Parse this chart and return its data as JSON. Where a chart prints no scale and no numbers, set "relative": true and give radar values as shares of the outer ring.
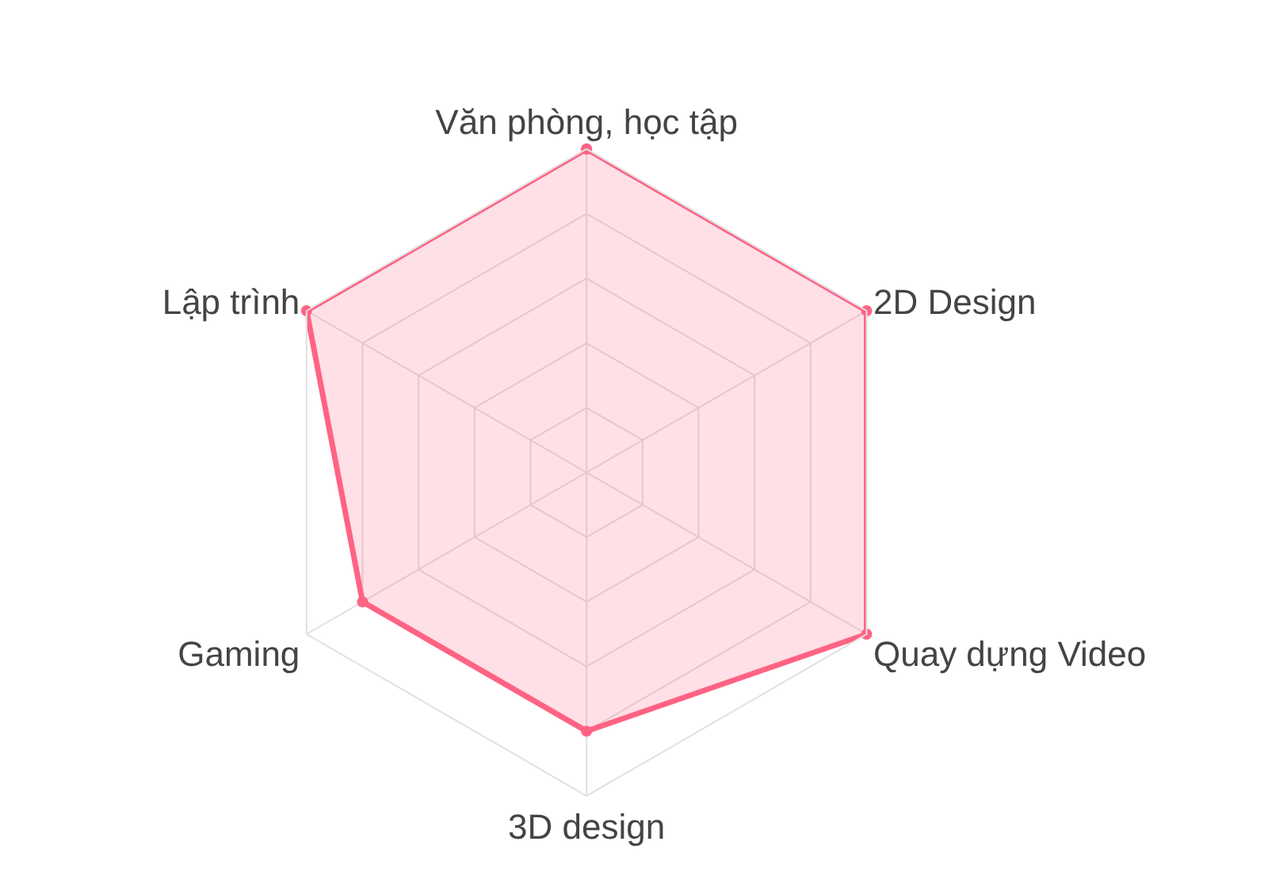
{
  "chart_data": {
    "type": "radar",
    "relative": true,
    "categories": [
      "Văn phòng, học tập",
      "2D Design",
      "Quay dựng Video",
      "3D design",
      "Gaming",
      "Lập trình"
    ],
    "series": [
      {
        "color": "#ff6384",
        "values": [
          1,
          1,
          1,
          0.8,
          0.8,
          1
        ]
      }
    ],
    "marker": "circle",
    "grid": true
  }
}
